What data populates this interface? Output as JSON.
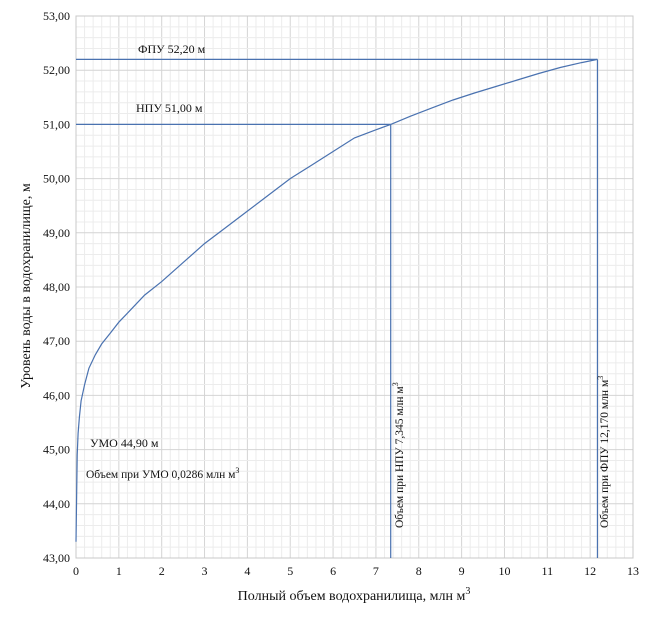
{
  "chart_data": {
    "type": "line",
    "xlabel": "Полный объем водохранилища, млн м",
    "xlabel_sup": "3",
    "ylabel": "Уровень воды в водохранилище, м",
    "xlim": [
      0,
      13
    ],
    "ylim": [
      43,
      53
    ],
    "x_ticks": [
      "0",
      "1",
      "2",
      "3",
      "4",
      "5",
      "6",
      "7",
      "8",
      "9",
      "10",
      "11",
      "12",
      "13"
    ],
    "y_ticks": [
      "43,00",
      "44,00",
      "45,00",
      "46,00",
      "47,00",
      "48,00",
      "49,00",
      "50,00",
      "51,00",
      "52,00",
      "53,00"
    ],
    "grid": true,
    "line_color": "#4a72b0",
    "series": [
      {
        "x": [
          0.0,
          0.0286,
          0.05,
          0.08,
          0.12,
          0.2,
          0.3,
          0.45,
          0.6,
          0.8,
          1.0,
          1.3,
          1.6,
          2.0,
          2.5,
          3.0,
          3.5,
          4.0,
          4.5,
          5.0,
          5.5,
          6.0,
          6.5,
          7.0,
          7.345,
          7.8,
          8.3,
          8.8,
          9.3,
          9.8,
          10.3,
          10.8,
          11.3,
          11.8,
          12.17
        ],
        "y": [
          43.3,
          44.9,
          45.3,
          45.6,
          45.9,
          46.2,
          46.5,
          46.75,
          46.95,
          47.15,
          47.35,
          47.6,
          47.85,
          48.1,
          48.45,
          48.8,
          49.1,
          49.4,
          49.7,
          50.0,
          50.25,
          50.5,
          50.75,
          50.9,
          51.0,
          51.15,
          51.3,
          51.45,
          51.58,
          51.7,
          51.82,
          51.94,
          52.05,
          52.14,
          52.2
        ]
      }
    ],
    "reference_lines": {
      "fpu": {
        "label": "ФПУ  52,20  м",
        "level": 52.2,
        "volume": 12.17
      },
      "npu": {
        "label": "НПУ  51,00  м",
        "level": 51.0,
        "volume": 7.345
      }
    },
    "annotations": {
      "umo_level": "УМО 44,90  м",
      "umo_volume": "Объем при УМО  0,0286  млн м",
      "npu_volume": "Объем при НПУ  7,345  млн м",
      "fpu_volume": "Объем при ФПУ  12,170  млн м",
      "sup": "3"
    }
  }
}
